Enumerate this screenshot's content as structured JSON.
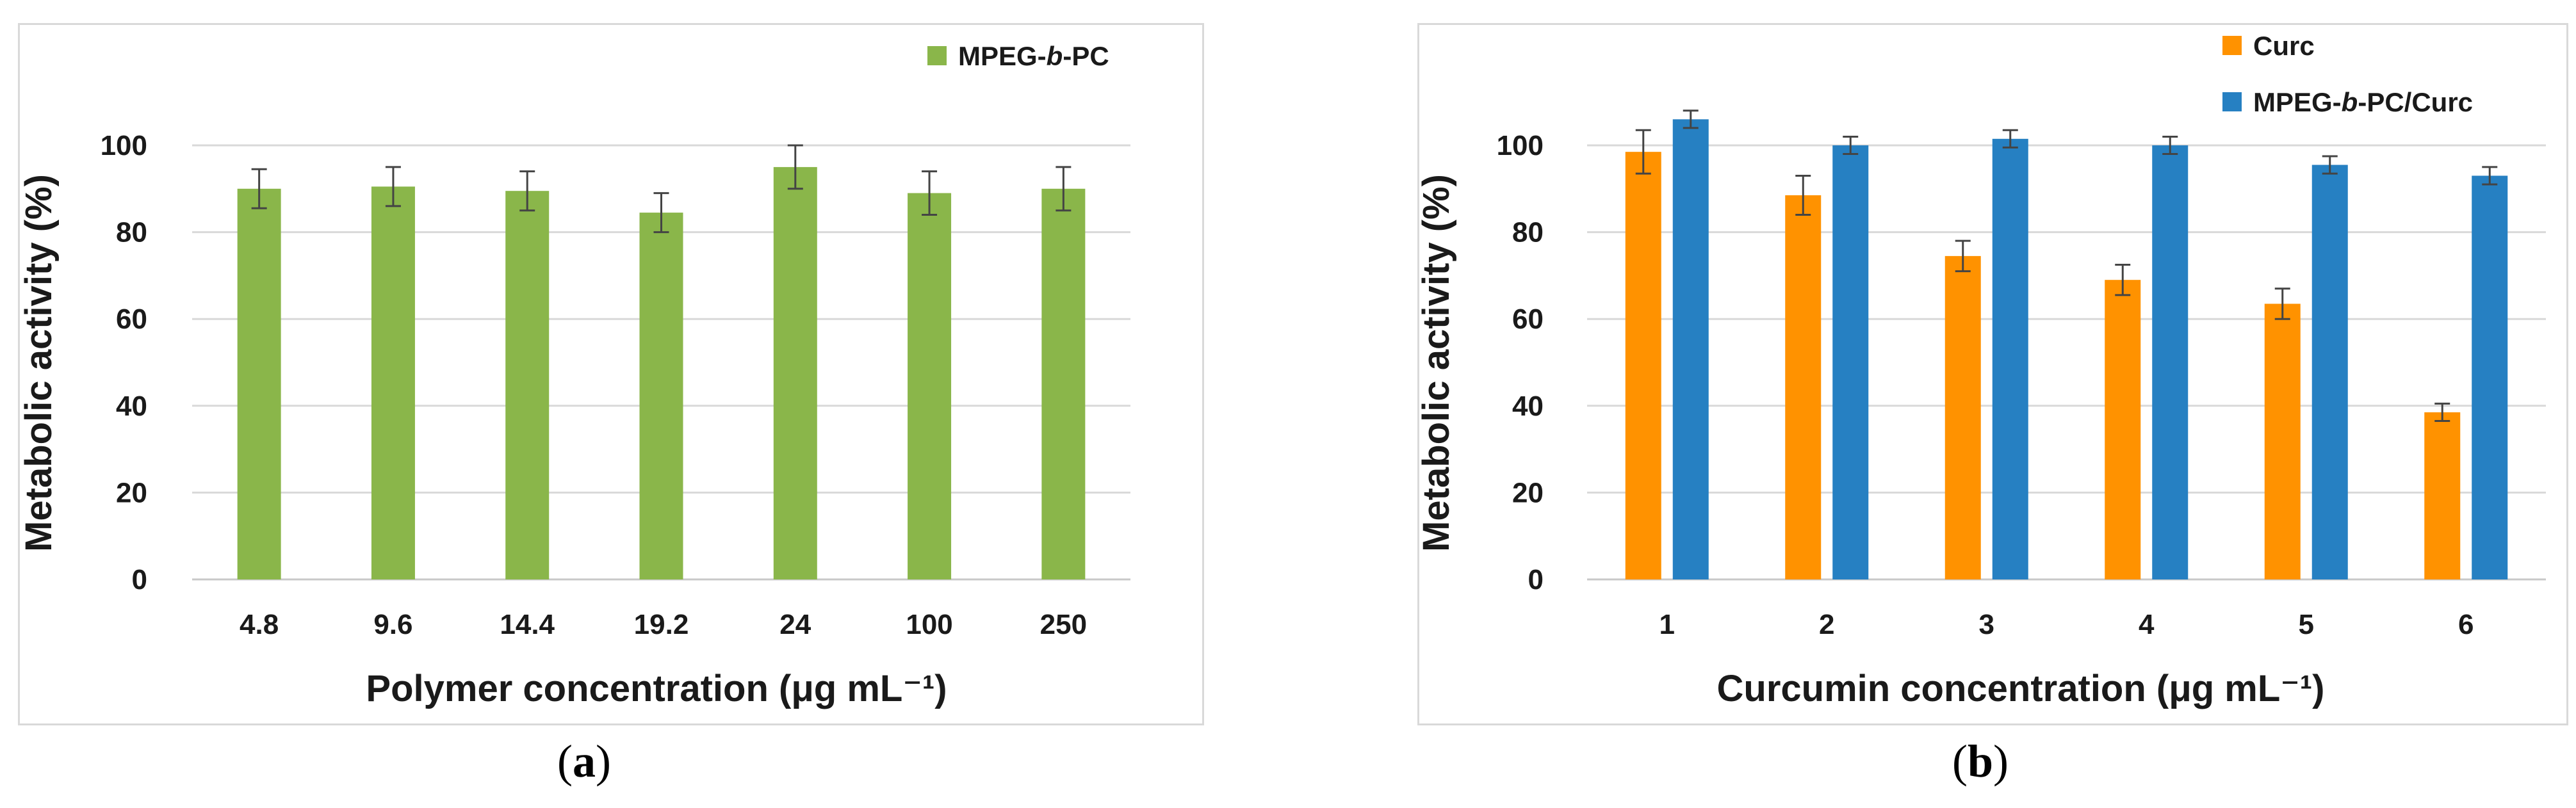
{
  "chart_data": [
    {
      "type": "bar",
      "panel_label": "a",
      "categories": [
        "4.8",
        "9.6",
        "14.4",
        "19.2",
        "24",
        "100",
        "250"
      ],
      "series": [
        {
          "name": "MPEG-b-PC",
          "name_prefix": "MPEG-",
          "name_italic": "b",
          "name_suffix": "-PC",
          "color": "#8ab64a",
          "values": [
            90,
            90.5,
            89.5,
            84.5,
            95,
            89,
            90
          ],
          "errors": [
            4.5,
            4.5,
            4.5,
            4.5,
            5,
            5,
            5
          ]
        }
      ],
      "xlabel": "Polymer concentration (μg mL⁻¹)",
      "ylabel": "Metabolic activity (%)",
      "ylim": [
        0,
        100
      ],
      "yticks": [
        "0",
        "20",
        "40",
        "60",
        "80",
        "100"
      ],
      "legend": "top-right"
    },
    {
      "type": "bar",
      "panel_label": "b",
      "categories": [
        "1",
        "2",
        "3",
        "4",
        "5",
        "6"
      ],
      "series": [
        {
          "name": "Curc",
          "name_prefix": "Curc",
          "name_italic": "",
          "name_suffix": "",
          "color": "#ff9200",
          "values": [
            98.5,
            88.5,
            74.5,
            69,
            63.5,
            38.5
          ],
          "errors": [
            5,
            4.5,
            3.5,
            3.5,
            3.5,
            2
          ]
        },
        {
          "name": "MPEG-b-PC/Curc",
          "name_prefix": "MPEG-",
          "name_italic": "b",
          "name_suffix": "-PC/Curc",
          "color": "#2680c2",
          "values": [
            106,
            100,
            101.5,
            100,
            95.5,
            93
          ],
          "errors": [
            2,
            2,
            2,
            2,
            2,
            2
          ]
        }
      ],
      "xlabel": "Curcumin concentration (μg mL⁻¹)",
      "ylabel": "Metabolic activity (%)",
      "ylim": [
        0,
        100
      ],
      "yticks": [
        "0",
        "20",
        "40",
        "60",
        "80",
        "100"
      ],
      "legend": "top-right"
    }
  ]
}
